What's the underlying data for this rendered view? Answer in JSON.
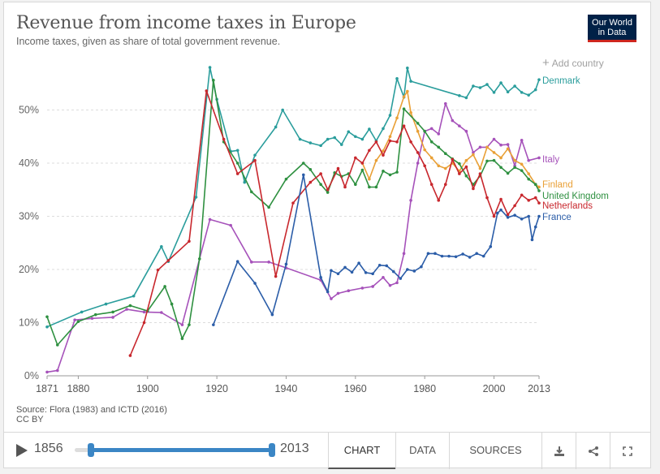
{
  "header": {
    "title": "Revenue from income taxes in Europe",
    "subtitle": "Income taxes, given as share of total government revenue.",
    "logo_line1": "Our World",
    "logo_line2": "in Data",
    "add_country": "Add country"
  },
  "footer": {
    "source": "Source: Flora (1983) and ICTD (2016)",
    "license": "CC BY",
    "start_year": "1856",
    "end_year": "2013",
    "tabs": [
      "CHART",
      "DATA",
      "SOURCES"
    ],
    "active_tab": "CHART",
    "icons": [
      "download-icon",
      "share-icon",
      "fullscreen-icon"
    ]
  },
  "chart_data": {
    "type": "line",
    "xlim": [
      1871,
      2013
    ],
    "ylim": [
      0,
      60
    ],
    "x_ticks": [
      "1871",
      "1880",
      "1900",
      "1920",
      "1940",
      "1960",
      "1980",
      "2000",
      "2013"
    ],
    "y_ticks": [
      "0%",
      "10%",
      "20%",
      "30%",
      "40%",
      "50%"
    ],
    "grid": "horizontal dashed",
    "legend": "right, labels at line ends",
    "series": [
      {
        "name": "Denmark",
        "color": "#2a9d9c",
        "points": [
          [
            1871,
            9.2
          ],
          [
            1881,
            12
          ],
          [
            1888,
            13.5
          ],
          [
            1896,
            15
          ],
          [
            1904,
            24.3
          ],
          [
            1906,
            21.5
          ],
          [
            1914,
            33.6
          ],
          [
            1918,
            58
          ],
          [
            1920,
            52
          ],
          [
            1924,
            42.2
          ],
          [
            1926,
            42.4
          ],
          [
            1928,
            36.4
          ],
          [
            1931,
            41.5
          ],
          [
            1937,
            46.8
          ],
          [
            1939,
            50
          ],
          [
            1944,
            44.5
          ],
          [
            1947,
            43.8
          ],
          [
            1950,
            43.3
          ],
          [
            1952,
            44.5
          ],
          [
            1954,
            44.8
          ],
          [
            1956,
            43.5
          ],
          [
            1958,
            45.9
          ],
          [
            1960,
            45
          ],
          [
            1962,
            44.5
          ],
          [
            1964,
            46.4
          ],
          [
            1966,
            44.2
          ],
          [
            1968,
            46.5
          ],
          [
            1970,
            49
          ],
          [
            1972,
            55.9
          ],
          [
            1974,
            52.4
          ],
          [
            1975,
            57.9
          ],
          [
            1976,
            55.4
          ],
          [
            1990,
            52.7
          ],
          [
            1992,
            52.3
          ],
          [
            1994,
            54.5
          ],
          [
            1996,
            54.2
          ],
          [
            1998,
            54.8
          ],
          [
            2000,
            53.3
          ],
          [
            2002,
            55.1
          ],
          [
            2004,
            53.4
          ],
          [
            2006,
            54.5
          ],
          [
            2008,
            53.3
          ],
          [
            2010,
            52.8
          ],
          [
            2012,
            53.8
          ],
          [
            2013,
            55.7
          ]
        ]
      },
      {
        "name": "Italy",
        "color": "#a652ba",
        "points": [
          [
            1871,
            0.7
          ],
          [
            1874,
            1
          ],
          [
            1879,
            10.5
          ],
          [
            1884,
            10.8
          ],
          [
            1890,
            11
          ],
          [
            1894,
            12.5
          ],
          [
            1899,
            12
          ],
          [
            1904,
            11.9
          ],
          [
            1910,
            9.6
          ],
          [
            1918,
            29.4
          ],
          [
            1924,
            28.3
          ],
          [
            1930,
            21.4
          ],
          [
            1935,
            21.4
          ],
          [
            1940,
            20.3
          ],
          [
            1950,
            18
          ],
          [
            1953,
            14.5
          ],
          [
            1955,
            15.5
          ],
          [
            1958,
            16
          ],
          [
            1962,
            16.5
          ],
          [
            1965,
            16.8
          ],
          [
            1968,
            18.5
          ],
          [
            1970,
            17
          ],
          [
            1972,
            17.5
          ],
          [
            1974,
            23
          ],
          [
            1976,
            33
          ],
          [
            1978,
            40
          ],
          [
            1980,
            46
          ],
          [
            1982,
            46.5
          ],
          [
            1984,
            45.5
          ],
          [
            1986,
            51.2
          ],
          [
            1988,
            48
          ],
          [
            1990,
            47
          ],
          [
            1992,
            46
          ],
          [
            1994,
            42
          ],
          [
            1996,
            43
          ],
          [
            1998,
            43
          ],
          [
            2000,
            44.5
          ],
          [
            2002,
            43.4
          ],
          [
            2004,
            43.5
          ],
          [
            2006,
            39.5
          ],
          [
            2008,
            44.3
          ],
          [
            2010,
            40.5
          ],
          [
            2013,
            41
          ]
        ]
      },
      {
        "name": "Finland",
        "color": "#e9a036",
        "points": [
          [
            1962,
            40
          ],
          [
            1964,
            37
          ],
          [
            1966,
            40.5
          ],
          [
            1968,
            42.3
          ],
          [
            1970,
            45
          ],
          [
            1972,
            48.5
          ],
          [
            1974,
            52.5
          ],
          [
            1975,
            53.5
          ],
          [
            1976,
            49.5
          ],
          [
            1978,
            46
          ],
          [
            1980,
            42.5
          ],
          [
            1982,
            41
          ],
          [
            1984,
            39.5
          ],
          [
            1986,
            39
          ],
          [
            1988,
            40
          ],
          [
            1990,
            38.5
          ],
          [
            1992,
            40.5
          ],
          [
            1994,
            41.6
          ],
          [
            1996,
            39
          ],
          [
            1998,
            43
          ],
          [
            2000,
            42
          ],
          [
            2002,
            41
          ],
          [
            2004,
            42.7
          ],
          [
            2006,
            40.5
          ],
          [
            2008,
            39.8
          ],
          [
            2010,
            38
          ],
          [
            2012,
            36
          ],
          [
            2013,
            35.5
          ]
        ]
      },
      {
        "name": "United Kingdom",
        "color": "#2e9040",
        "points": [
          [
            1871,
            11.1
          ],
          [
            1874,
            5.8
          ],
          [
            1880,
            10.2
          ],
          [
            1885,
            11.5
          ],
          [
            1890,
            12
          ],
          [
            1895,
            13.2
          ],
          [
            1900,
            12.2
          ],
          [
            1905,
            16.8
          ],
          [
            1907,
            13.5
          ],
          [
            1910,
            7
          ],
          [
            1912,
            9.6
          ],
          [
            1915,
            22
          ],
          [
            1919,
            55.6
          ],
          [
            1922,
            44
          ],
          [
            1926,
            40
          ],
          [
            1930,
            34.6
          ],
          [
            1935,
            31.7
          ],
          [
            1940,
            37
          ],
          [
            1945,
            40
          ],
          [
            1947,
            38.8
          ],
          [
            1950,
            36
          ],
          [
            1952,
            34.5
          ],
          [
            1954,
            38.2
          ],
          [
            1956,
            37.5
          ],
          [
            1958,
            38
          ],
          [
            1960,
            36
          ],
          [
            1962,
            38.7
          ],
          [
            1964,
            35.5
          ],
          [
            1966,
            35.5
          ],
          [
            1968,
            38.5
          ],
          [
            1970,
            37.8
          ],
          [
            1972,
            38.3
          ],
          [
            1974,
            50.2
          ],
          [
            1978,
            47.5
          ],
          [
            1980,
            46
          ],
          [
            1982,
            44
          ],
          [
            1984,
            43
          ],
          [
            1986,
            41.8
          ],
          [
            1988,
            40.8
          ],
          [
            1990,
            39.9
          ],
          [
            1992,
            37.6
          ],
          [
            1994,
            36
          ],
          [
            1996,
            37.6
          ],
          [
            1998,
            40.4
          ],
          [
            2000,
            40.5
          ],
          [
            2002,
            39.2
          ],
          [
            2004,
            38.1
          ],
          [
            2006,
            39.2
          ],
          [
            2008,
            38.6
          ],
          [
            2010,
            37
          ],
          [
            2012,
            36
          ],
          [
            2013,
            34.8
          ]
        ]
      },
      {
        "name": "Netherlands",
        "color": "#c8272d",
        "points": [
          [
            1895,
            3.8
          ],
          [
            1899,
            10
          ],
          [
            1903,
            19.9
          ],
          [
            1906,
            21.7
          ],
          [
            1912,
            25.3
          ],
          [
            1917,
            53.6
          ],
          [
            1922,
            44.5
          ],
          [
            1926,
            38
          ],
          [
            1931,
            40.5
          ],
          [
            1937,
            18.7
          ],
          [
            1942,
            32.5
          ],
          [
            1947,
            36.4
          ],
          [
            1950,
            38
          ],
          [
            1952,
            35
          ],
          [
            1955,
            39
          ],
          [
            1957,
            35.5
          ],
          [
            1960,
            41
          ],
          [
            1962,
            40
          ],
          [
            1964,
            42.4
          ],
          [
            1966,
            44
          ],
          [
            1968,
            41.5
          ],
          [
            1970,
            44.2
          ],
          [
            1972,
            44
          ],
          [
            1974,
            47
          ],
          [
            1976,
            44
          ],
          [
            1978,
            42
          ],
          [
            1980,
            39.5
          ],
          [
            1982,
            36
          ],
          [
            1984,
            33
          ],
          [
            1986,
            36
          ],
          [
            1988,
            40.7
          ],
          [
            1990,
            38
          ],
          [
            1992,
            39.3
          ],
          [
            1994,
            35.2
          ],
          [
            1996,
            38
          ],
          [
            1998,
            33.5
          ],
          [
            2000,
            30
          ],
          [
            2002,
            33.2
          ],
          [
            2004,
            30.3
          ],
          [
            2006,
            32
          ],
          [
            2008,
            34
          ],
          [
            2010,
            33
          ],
          [
            2012,
            33.5
          ],
          [
            2013,
            32.5
          ]
        ]
      },
      {
        "name": "France",
        "color": "#2b5da8",
        "points": [
          [
            1919,
            9.6
          ],
          [
            1926,
            21.5
          ],
          [
            1931,
            17.4
          ],
          [
            1936,
            11.5
          ],
          [
            1940,
            21
          ],
          [
            1945,
            37.8
          ],
          [
            1950,
            18.5
          ],
          [
            1952,
            15.8
          ],
          [
            1953,
            19.8
          ],
          [
            1955,
            19.2
          ],
          [
            1957,
            20.4
          ],
          [
            1959,
            19.5
          ],
          [
            1961,
            21.2
          ],
          [
            1963,
            19.4
          ],
          [
            1965,
            19.2
          ],
          [
            1967,
            20.8
          ],
          [
            1969,
            20.7
          ],
          [
            1971,
            19.6
          ],
          [
            1973,
            18.3
          ],
          [
            1975,
            20
          ],
          [
            1977,
            19.7
          ],
          [
            1979,
            20.5
          ],
          [
            1981,
            23
          ],
          [
            1983,
            23
          ],
          [
            1985,
            22.5
          ],
          [
            1987,
            22.5
          ],
          [
            1989,
            22.4
          ],
          [
            1991,
            22.9
          ],
          [
            1993,
            22.3
          ],
          [
            1995,
            23
          ],
          [
            1997,
            22.5
          ],
          [
            1999,
            24.3
          ],
          [
            2001,
            30.6
          ],
          [
            2002,
            31.2
          ],
          [
            2004,
            29.8
          ],
          [
            2006,
            30.2
          ],
          [
            2008,
            29.5
          ],
          [
            2010,
            30
          ],
          [
            2011,
            25.6
          ],
          [
            2012,
            28
          ],
          [
            2013,
            30
          ]
        ]
      }
    ]
  }
}
